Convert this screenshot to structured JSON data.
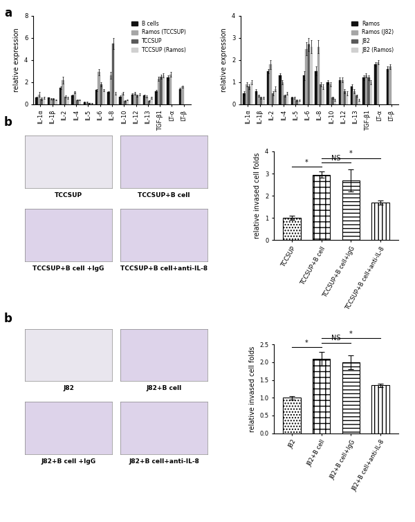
{
  "panel_labels": [
    "a",
    "b",
    "b"
  ],
  "micrographs": [
    [
      "TCCSUP",
      "TCCSUP+B cell",
      "TCCSUP+B cell +IgG",
      "TCCSUP+B cell+anti-IL-8"
    ],
    [
      "J82",
      "J82+B cell",
      "J82+B cell +IgG",
      "J82+B cell+anti-IL-8"
    ]
  ],
  "chart_data": [
    {
      "type": "grouped_bar",
      "ylabel": "relative expression",
      "categories": [
        "IL-1α",
        "IL-1β",
        "IL-2",
        "IL-4",
        "IL-5",
        "IL-6",
        "IL-8",
        "IL-10",
        "IL-12",
        "IL-13",
        "TGF-β1",
        "LT-α",
        "LT-β"
      ],
      "series": [
        {
          "name": "B cells",
          "color": "#111111",
          "values": [
            0.6,
            0.6,
            1.5,
            0.8,
            0.2,
            1.3,
            1.1,
            0.7,
            0.9,
            0.8,
            1.2,
            2.4,
            1.4
          ],
          "errors": [
            0.1,
            0.05,
            0.1,
            0.1,
            0.05,
            0.1,
            0.1,
            0.1,
            0.1,
            0.1,
            0.1,
            0.2,
            0.1
          ]
        },
        {
          "name": "Ramos (TCCSUP)",
          "color": "#a6a6a6",
          "values": [
            0.9,
            0.5,
            2.2,
            1.1,
            0.2,
            2.9,
            2.6,
            1.0,
            1.0,
            0.7,
            2.3,
            2.7,
            1.6
          ],
          "errors": [
            0.2,
            0.05,
            0.3,
            0.1,
            0.05,
            0.3,
            0.3,
            0.1,
            0.1,
            0.1,
            0.2,
            0.2,
            0.1
          ]
        },
        {
          "name": "TCCSUP",
          "color": "#5a5a5a",
          "values": [
            0.5,
            0.5,
            0.7,
            0.4,
            0.1,
            1.8,
            5.5,
            0.3,
            0.8,
            0.3,
            2.5,
            null,
            null
          ],
          "errors": [
            0.1,
            0.05,
            0.1,
            0.05,
            0.02,
            0.2,
            0.5,
            0.05,
            0.1,
            0.05,
            0.2,
            null,
            null
          ]
        },
        {
          "name": "TCCSUP (Ramos)",
          "color": "#d0d0d0",
          "values": [
            0.6,
            0.4,
            0.6,
            0.4,
            0.1,
            1.3,
            1.0,
            0.4,
            0.9,
            0.6,
            2.6,
            null,
            null
          ],
          "errors": [
            0.1,
            0.05,
            0.1,
            0.05,
            0.02,
            0.1,
            0.1,
            0.05,
            0.1,
            0.1,
            0.2,
            null,
            null
          ]
        }
      ],
      "ylim": [
        0,
        8
      ],
      "yticks": [
        0,
        2,
        4,
        6,
        8
      ],
      "legend": "upper right"
    },
    {
      "type": "grouped_bar",
      "ylabel": "relative expression",
      "categories": [
        "IL-1α",
        "IL-1β",
        "IL-2",
        "IL-4",
        "IL-5",
        "IL-6",
        "IL-8",
        "IL-10",
        "IL-12",
        "IL-13",
        "TGF-β1",
        "LT-α",
        "LT-β"
      ],
      "series": [
        {
          "name": "Ramos",
          "color": "#111111",
          "values": [
            0.5,
            0.6,
            1.5,
            1.3,
            0.3,
            1.3,
            1.5,
            1.0,
            1.1,
            0.8,
            1.2,
            1.8,
            1.6
          ],
          "errors": [
            0.1,
            0.1,
            0.1,
            0.1,
            0.05,
            0.2,
            0.2,
            0.1,
            0.1,
            0.1,
            0.1,
            0.1,
            0.1
          ]
        },
        {
          "name": "Ramos (J82)",
          "color": "#a6a6a6",
          "values": [
            0.9,
            0.4,
            1.8,
            1.0,
            0.3,
            2.5,
            2.6,
            0.9,
            1.1,
            0.6,
            1.3,
            1.9,
            1.7
          ],
          "errors": [
            0.1,
            0.05,
            0.2,
            0.1,
            0.05,
            0.3,
            0.3,
            0.1,
            0.1,
            0.1,
            0.1,
            0.1,
            0.1
          ]
        },
        {
          "name": "J82",
          "color": "#5a5a5a",
          "values": [
            0.8,
            0.3,
            0.5,
            0.4,
            0.2,
            2.7,
            0.9,
            0.3,
            0.6,
            0.4,
            1.2,
            null,
            null
          ],
          "errors": [
            0.1,
            0.05,
            0.1,
            0.05,
            0.03,
            0.3,
            0.1,
            0.05,
            0.1,
            0.05,
            0.1,
            null,
            null
          ]
        },
        {
          "name": "J82 (Ramos)",
          "color": "#d0d0d0",
          "values": [
            1.0,
            0.3,
            0.7,
            0.5,
            0.2,
            2.6,
            0.8,
            0.2,
            0.5,
            0.2,
            1.0,
            null,
            null
          ],
          "errors": [
            0.1,
            0.05,
            0.1,
            0.05,
            0.03,
            0.3,
            0.1,
            0.05,
            0.1,
            0.05,
            0.1,
            null,
            null
          ]
        }
      ],
      "ylim": [
        0,
        4
      ],
      "yticks": [
        0,
        1,
        2,
        3,
        4
      ],
      "legend": "upper right"
    },
    {
      "type": "bar",
      "ylabel": "relative invased cell folds",
      "categories": [
        "TCCSUP",
        "TCCSUP+B cell",
        "TCCSUP+B cell+IgG",
        "TCCSUP+B cell+anti-IL-8"
      ],
      "values": [
        1.0,
        2.95,
        2.7,
        1.7
      ],
      "errors": [
        0.1,
        0.15,
        0.5,
        0.1
      ],
      "color": "#ffffff",
      "annotations": [
        {
          "text": "*",
          "from": "TCCSUP",
          "to": "TCCSUP+B cell"
        },
        {
          "text": "NS",
          "from": "TCCSUP+B cell",
          "to": "TCCSUP+B cell+IgG"
        },
        {
          "text": "*",
          "from": "TCCSUP+B cell",
          "to": "TCCSUP+B cell+anti-IL-8"
        }
      ],
      "ylim": [
        0,
        4
      ],
      "yticks": [
        0,
        1,
        2,
        3,
        4
      ]
    },
    {
      "type": "bar",
      "ylabel": "relative invased cell folds",
      "categories": [
        "J82",
        "J82+B cell",
        "J82+B cell+IgG",
        "J82+B cell+anti-IL-8"
      ],
      "values": [
        1.0,
        2.1,
        2.0,
        1.35
      ],
      "errors": [
        0.05,
        0.2,
        0.2,
        0.05
      ],
      "color": "#ffffff",
      "annotations": [
        {
          "text": "*",
          "from": "J82",
          "to": "J82+B cell"
        },
        {
          "text": "NS",
          "from": "J82+B cell",
          "to": "J82+B cell+IgG"
        },
        {
          "text": "*",
          "from": "J82+B cell",
          "to": "J82+B cell+anti-IL-8"
        }
      ],
      "ylim": [
        0,
        2.5
      ],
      "yticks": [
        {
          "value": 0,
          "label": "0.0"
        },
        0.5,
        {
          "value": 1,
          "label": "1.0"
        },
        1.5,
        {
          "value": 2,
          "label": "2.0"
        },
        2.5
      ]
    }
  ]
}
